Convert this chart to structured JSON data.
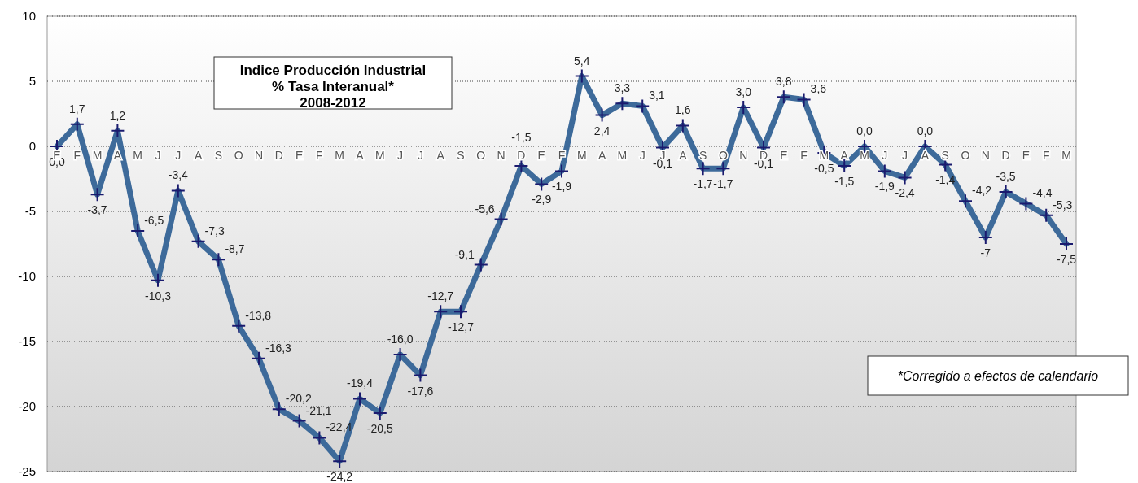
{
  "chart_data": {
    "type": "line",
    "title": "Indice Producción Industrial\n% Tasa Interanual*\n2008-2012",
    "categories": [
      "E",
      "F",
      "M",
      "A",
      "M",
      "J",
      "J",
      "A",
      "S",
      "O",
      "N",
      "D",
      "E",
      "F",
      "M",
      "A",
      "M",
      "J",
      "J",
      "A",
      "S",
      "O",
      "N",
      "D",
      "E",
      "F",
      "M",
      "A",
      "M",
      "J",
      "J",
      "A",
      "S",
      "O",
      "N",
      "D",
      "E",
      "F",
      "M",
      "A",
      "M",
      "J",
      "J",
      "A",
      "S",
      "O",
      "N",
      "D",
      "E",
      "F",
      "M"
    ],
    "series": [
      {
        "color": "#3d6a9a",
        "values": [
          0.0,
          1.7,
          -3.7,
          1.2,
          -6.5,
          -10.3,
          -3.4,
          -7.3,
          -8.7,
          -13.8,
          -16.3,
          -20.2,
          -21.1,
          -22.4,
          -24.2,
          -19.4,
          -20.5,
          -16.0,
          -17.6,
          -12.7,
          -12.7,
          -9.1,
          -5.6,
          -1.5,
          -2.9,
          -1.9,
          5.4,
          2.4,
          3.3,
          3.1,
          -0.1,
          1.6,
          -1.7,
          -1.7,
          3.0,
          -0.1,
          3.8,
          3.6,
          -0.5,
          -1.5,
          0.0,
          -1.9,
          -2.4,
          0.0,
          -1.4,
          -4.2,
          -7,
          -3.5,
          -4.4,
          -5.3,
          -7.5
        ],
        "value_labels": [
          "0,0",
          "1,7",
          "-3,7",
          "1,2",
          "-6,5",
          "-10,3",
          "-3,4",
          "-7,3",
          "-8,7",
          "-13,8",
          "-16,3",
          "-20,2",
          "-21,1",
          "-22,4",
          "-24,2",
          "-19,4",
          "-20,5",
          "-16,0",
          "-17,6",
          "-12,7",
          "-12,7",
          "-9,1",
          "-5,6",
          "-1,5",
          "-2,9",
          "-1,9",
          "5,4",
          "2,4",
          "3,3",
          "3,1",
          "-0,1",
          "1,6",
          "-1,7",
          "-1,7",
          "3,0",
          "-0,1",
          "3,8",
          "3,6",
          "-0,5",
          "-1,5",
          "0,0",
          "-1,9",
          "-2,4",
          "0,0",
          "-1,4",
          "-4,2",
          "-7",
          "-3,5",
          "-4,4",
          "-5,3",
          "-7,5"
        ]
      }
    ],
    "ylim": [
      -25,
      10
    ],
    "yticks": [
      -25,
      -20,
      -15,
      -10,
      -5,
      0,
      5,
      10
    ],
    "grid": "y",
    "marker": "cross",
    "line_style": "solid",
    "annotations": [
      "*Corregido a efectos de calendario"
    ]
  }
}
